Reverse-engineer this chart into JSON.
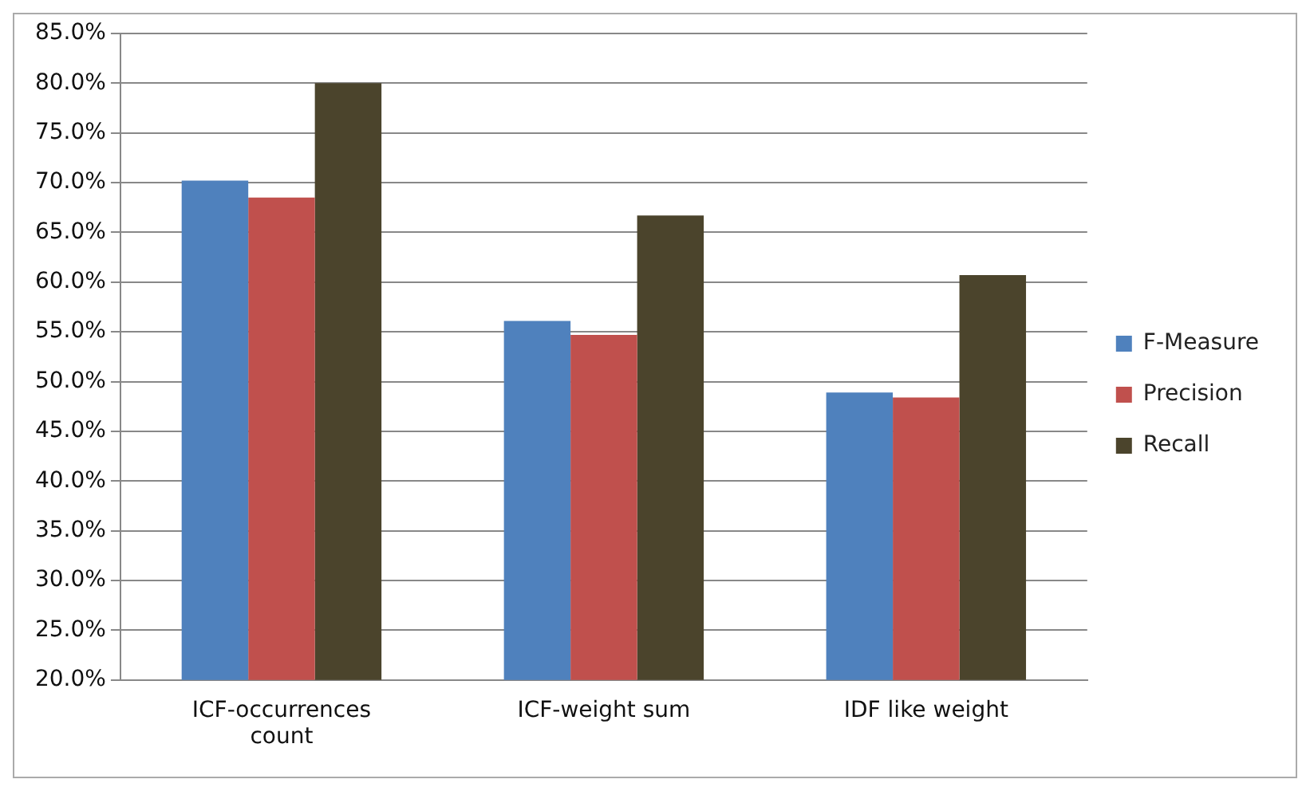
{
  "chart_data": {
    "type": "bar",
    "categories": [
      "ICF-occurrences count",
      "ICF-weight sum",
      "IDF like weight"
    ],
    "series": [
      {
        "name": "F-Measure",
        "color": "#4f81bd",
        "values": [
          70.2,
          56.1,
          48.9
        ]
      },
      {
        "name": "Precision",
        "color": "#c0504d",
        "values": [
          68.5,
          54.7,
          48.4
        ]
      },
      {
        "name": "Recall",
        "color": "#4b442c",
        "values": [
          80.0,
          66.7,
          60.7
        ]
      }
    ],
    "ylim": [
      20,
      85
    ],
    "yticks": [
      {
        "value": 20,
        "label": "20.0%"
      },
      {
        "value": 25,
        "label": "25.0%"
      },
      {
        "value": 30,
        "label": "30.0%"
      },
      {
        "value": 35,
        "label": "35.0%"
      },
      {
        "value": 40,
        "label": "40.0%"
      },
      {
        "value": 45,
        "label": "45.0%"
      },
      {
        "value": 50,
        "label": "50.0%"
      },
      {
        "value": 55,
        "label": "55.0%"
      },
      {
        "value": 60,
        "label": "60.0%"
      },
      {
        "value": 65,
        "label": "65.0%"
      },
      {
        "value": 70,
        "label": "70.0%"
      },
      {
        "value": 75,
        "label": "75.0%"
      },
      {
        "value": 80,
        "label": "80.0%"
      },
      {
        "value": 85,
        "label": "85.0%"
      }
    ],
    "grid": "y",
    "legend": "right"
  }
}
